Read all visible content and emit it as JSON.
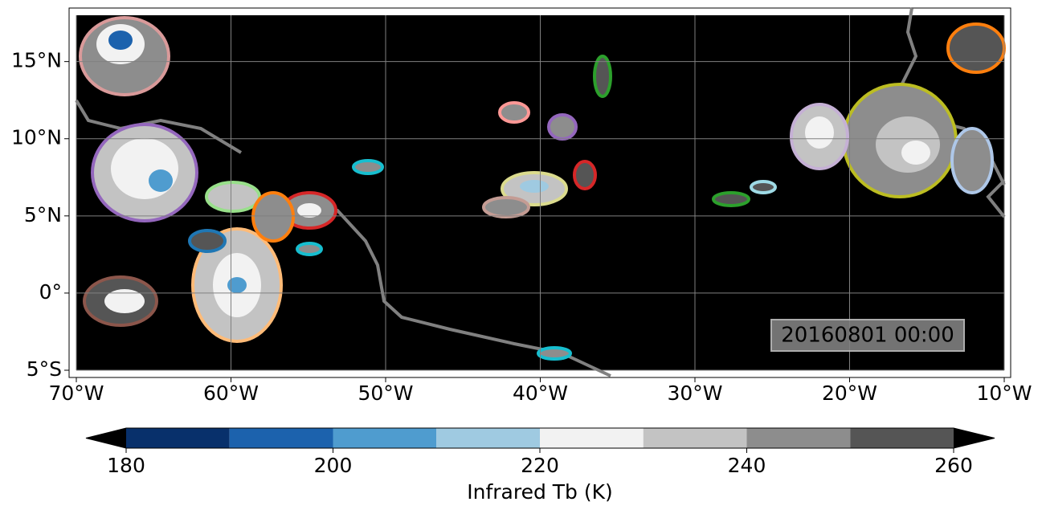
{
  "chart_data": {
    "type": "map",
    "xlim": [
      -70,
      -10
    ],
    "ylim": [
      -5,
      18
    ],
    "xticks": [
      {
        "value": -70,
        "label": "70°W"
      },
      {
        "value": -60,
        "label": "60°W"
      },
      {
        "value": -50,
        "label": "50°W"
      },
      {
        "value": -40,
        "label": "40°W"
      },
      {
        "value": -30,
        "label": "30°W"
      },
      {
        "value": -20,
        "label": "20°W"
      },
      {
        "value": -10,
        "label": "10°W"
      }
    ],
    "yticks": [
      {
        "value": -5,
        "label": "5°S"
      },
      {
        "value": 0,
        "label": "0°"
      },
      {
        "value": 5,
        "label": "5°N"
      },
      {
        "value": 10,
        "label": "10°N"
      },
      {
        "value": 15,
        "label": "15°N"
      }
    ],
    "grid": true,
    "annotation": "20160801 00:00",
    "colorbar": {
      "label": "Infrared Tb (K)",
      "boundaries": [
        180,
        190,
        200,
        210,
        220,
        230,
        240,
        250,
        260
      ],
      "colors": [
        "#08306b",
        "#1c62ad",
        "#4f9ccf",
        "#9fcae1",
        "#f2f2f2",
        "#c3c3c3",
        "#8d8d8d",
        "#555555"
      ],
      "ticks": [
        180,
        200,
        220,
        240,
        260
      ],
      "under_color": "#000000",
      "over_color": "#000000"
    }
  }
}
